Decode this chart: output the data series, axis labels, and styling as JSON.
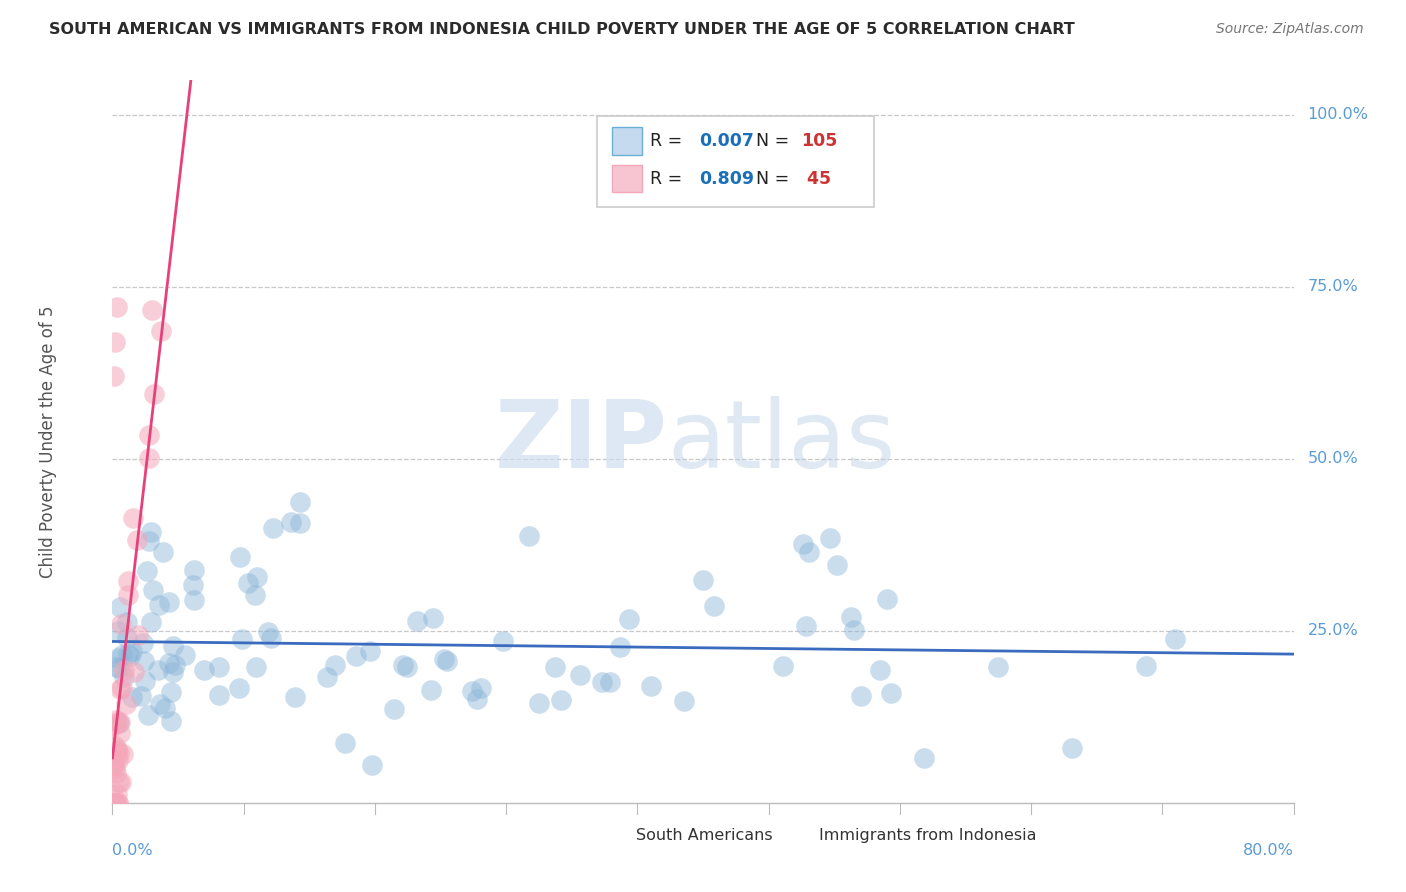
{
  "title": "SOUTH AMERICAN VS IMMIGRANTS FROM INDONESIA CHILD POVERTY UNDER THE AGE OF 5 CORRELATION CHART",
  "source": "Source: ZipAtlas.com",
  "ylabel": "Child Poverty Under the Age of 5",
  "xlim": [
    0.0,
    0.8
  ],
  "ylim": [
    0.0,
    1.05
  ],
  "watermark_zip": "ZIP",
  "watermark_atlas": "atlas",
  "R1": "0.007",
  "N1": "105",
  "R2": "0.809",
  "N2": "45",
  "blue_scatter_color": "#8ab4d8",
  "pink_scatter_color": "#f4a7b9",
  "line_blue": "#3a6bbf",
  "line_pink": "#e8407a",
  "grid_color": "#c8c8c8",
  "background_color": "#ffffff",
  "title_color": "#2b2b2b",
  "axis_label_color": "#555555",
  "tick_color": "#5b9bd5",
  "legend_text_color": "#222222",
  "legend_number_color": "#1a6fba",
  "legend_N_color": "#cc3333",
  "bottom_legend_label1": "South Americans",
  "bottom_legend_label2": "Immigrants from Indonesia"
}
